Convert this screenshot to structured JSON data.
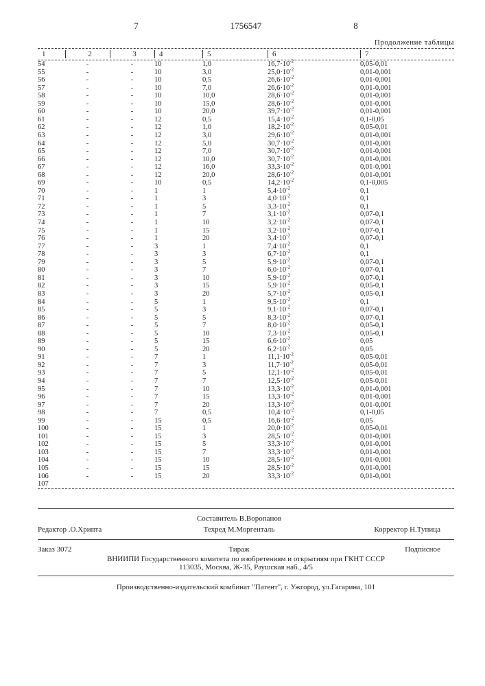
{
  "docnum": "1756547",
  "left_page": "7",
  "right_page": "8",
  "continuation": "Продолжение таблицы",
  "headers": [
    "1",
    "2",
    "3",
    "4",
    "5",
    "6",
    "7"
  ],
  "rows": [
    [
      "54",
      "-",
      "-",
      "10",
      "1,0",
      "16,7·10⁻²",
      "0,05-0,01"
    ],
    [
      "55",
      "-",
      "-",
      "10",
      "3,0",
      "25,0·10⁻²",
      "0,01-0,001"
    ],
    [
      "56",
      "-",
      "-",
      "10",
      "0,5",
      "26,6·10⁻²",
      "0,01-0,001"
    ],
    [
      "57",
      "-",
      "-",
      "10",
      "7,0",
      "26,6·10⁻²",
      "0,01-0,001"
    ],
    [
      "58",
      "-",
      "-",
      "10",
      "10,0",
      "28,6·10⁻²",
      "0,01-0,001"
    ],
    [
      "59",
      "-",
      "-",
      "10",
      "15,0",
      "28,6·10⁻²",
      "0,01-0,001"
    ],
    [
      "60",
      "-",
      "-",
      "10",
      "20,0",
      "39,7·10⁻²",
      "0,01-0,001"
    ],
    [
      "61",
      "-",
      "-",
      "12",
      "0,5",
      "15,4·10⁻²",
      "0,1-0,05"
    ],
    [
      "62",
      "-",
      "-",
      "12",
      "1,0",
      "18,2·10⁻²",
      "0,05-0,01"
    ],
    [
      "63",
      "-",
      "-",
      "12",
      "3,0",
      "29,6·10⁻²",
      "0,01-0,001"
    ],
    [
      "64",
      "-",
      "-",
      "12",
      "5,0",
      "30,7·10⁻²",
      "0,01-0,001"
    ],
    [
      "65",
      "-",
      "-",
      "12",
      "7,0",
      "30,7·10⁻²",
      "0,01-0,001"
    ],
    [
      "66",
      "-",
      "-",
      "12",
      "10,0",
      "30,7·10⁻²",
      "0,01-0,001"
    ],
    [
      "67",
      "-",
      "-",
      "12",
      "16,0",
      "33,3·10⁻²",
      "0,01-0,001"
    ],
    [
      "68",
      "-",
      "-",
      "12",
      "20,0",
      "28,6·10⁻²",
      "0,01-0,001"
    ],
    [
      "69",
      "-",
      "-",
      "10",
      "0,5",
      "14,2·10⁻²",
      "0,1-0,005"
    ],
    [
      "70",
      "-",
      "-",
      "1",
      "1",
      "5,4·10⁻²",
      "0,1"
    ],
    [
      "71",
      "-",
      "-",
      "1",
      "3",
      "4,0·10⁻²",
      "0,1"
    ],
    [
      "72",
      "-",
      "-",
      "1",
      "5",
      "3,3·10⁻²",
      "0,1"
    ],
    [
      "73",
      "-",
      "-",
      "1",
      "7",
      "3,1·10⁻²",
      "0,07-0,1"
    ],
    [
      "74",
      "-",
      "-",
      "1",
      "10",
      "3,2·10⁻²",
      "0,07-0,1"
    ],
    [
      "75",
      "-",
      "-",
      "1",
      "15",
      "3,2·10⁻²",
      "0,07-0,1"
    ],
    [
      "76",
      "-",
      "-",
      "1",
      "20",
      "3,4·10⁻²",
      "0,07-0,1"
    ],
    [
      "77",
      "-",
      "-",
      "3",
      "1",
      "7,4·10⁻²",
      "0,1"
    ],
    [
      "78",
      "-",
      "-",
      "3",
      "3",
      "6,7·10⁻²",
      "0,1"
    ],
    [
      "79",
      "-",
      "-",
      "3",
      "5",
      "5,9·10⁻²",
      "0,07-0,1"
    ],
    [
      "80",
      "-",
      "-",
      "3",
      "7",
      "6,0·10⁻²",
      "0,07-0,1"
    ],
    [
      "81",
      "-",
      "-",
      "3",
      "10",
      "5,9·10⁻²",
      "0,07-0,1"
    ],
    [
      "82",
      "-",
      "-",
      "3",
      "15",
      "5,9·10⁻²",
      "0,05-0,1"
    ],
    [
      "83",
      "-",
      "-",
      "3",
      "20",
      "5,7·10⁻²",
      "0,05-0,1"
    ],
    [
      "84",
      "-",
      "-",
      "5",
      "1",
      "9,5·10⁻²",
      "0,1"
    ],
    [
      "85",
      "-",
      "-",
      "5",
      "3",
      "9,1·10⁻²",
      "0,07-0,1"
    ],
    [
      "86",
      "-",
      "-",
      "5",
      "5",
      "8,3·10⁻²",
      "0,07-0,1"
    ],
    [
      "87",
      "-",
      "-",
      "5",
      "7",
      "8,0·10⁻²",
      "0,05-0,1"
    ],
    [
      "88",
      "-",
      "-",
      "5",
      "10",
      "7,3·10⁻²",
      "0,05-0,1"
    ],
    [
      "89",
      "-",
      "-",
      "5",
      "15",
      "6,6·10⁻²",
      "0,05"
    ],
    [
      "90",
      "-",
      "-",
      "5",
      "20",
      "6,2·10⁻²",
      "0,05"
    ],
    [
      "91",
      "-",
      "-",
      "7",
      "1",
      "11,1·10⁻²",
      "0,05-0,01"
    ],
    [
      "92",
      "-",
      "-",
      "7",
      "3",
      "11,7·10⁻²",
      "0,05-0,01"
    ],
    [
      "93",
      "-",
      "-",
      "7",
      "5",
      "12,1·10⁻²",
      "0,05-0,01"
    ],
    [
      "94",
      "-",
      "-",
      "7",
      "7",
      "12,5·10⁻²",
      "0,05-0,01"
    ],
    [
      "95",
      "-",
      "-",
      "7",
      "10",
      "13,3·10⁻²",
      "0,01-0,001"
    ],
    [
      "96",
      "-",
      "-",
      "7",
      "15",
      "13,3·10⁻²",
      "0,01-0,001"
    ],
    [
      "97",
      "-",
      "-",
      "7",
      "20",
      "13,3·10⁻²",
      "0,01-0,001"
    ],
    [
      "98",
      "-",
      "-",
      "7",
      "0,5",
      "10,4·10⁻²",
      "0,1-0,05"
    ],
    [
      "99",
      "-",
      "-",
      "15",
      "0,5",
      "16,6·10⁻²",
      "0,05"
    ],
    [
      "100",
      "-",
      "-",
      "15",
      "1",
      "20,0·10⁻²",
      "0,05-0,01"
    ],
    [
      "101",
      "-",
      "-",
      "15",
      "3",
      "28,5·10⁻²",
      "0,01-0,001"
    ],
    [
      "102",
      "-",
      "-",
      "15",
      "5",
      "33,3·10⁻²",
      "0,01-0,001"
    ],
    [
      "103",
      "-",
      "-",
      "15",
      "7",
      "33,3·10⁻²",
      "0,01-0,001"
    ],
    [
      "104",
      "-",
      "-",
      "15",
      "10",
      "28,5·10⁻²",
      "0,01-0,001"
    ],
    [
      "105",
      "-",
      "-",
      "15",
      "15",
      "28,5·10⁻²",
      "0,01-0,001"
    ],
    [
      "106",
      "-",
      "-",
      "15",
      "20",
      "33,3·10⁻²",
      "0,01-0,001"
    ],
    [
      "107",
      "",
      "",
      "",
      "",
      "",
      ""
    ]
  ],
  "footer": {
    "compiler": "Составитель В.Воропанов",
    "editor": "Редактор .О.Хрипта",
    "tech": "Техред М.Моргенталь",
    "corrector": "Корректор Н.Тупица",
    "order": "Заказ 3072",
    "tirage": "Тираж",
    "subscr": "Подписное",
    "inst1": "ВНИИПИ Государственного комитета по изобретениям и открытиям при ГКНТ СССР",
    "inst2": "113035, Москва, Ж-35, Раушская наб., 4/5",
    "bottom": "Производственно-издательский комбинат \"Патент\", г. Ужгород, ул.Гагарина, 101"
  }
}
